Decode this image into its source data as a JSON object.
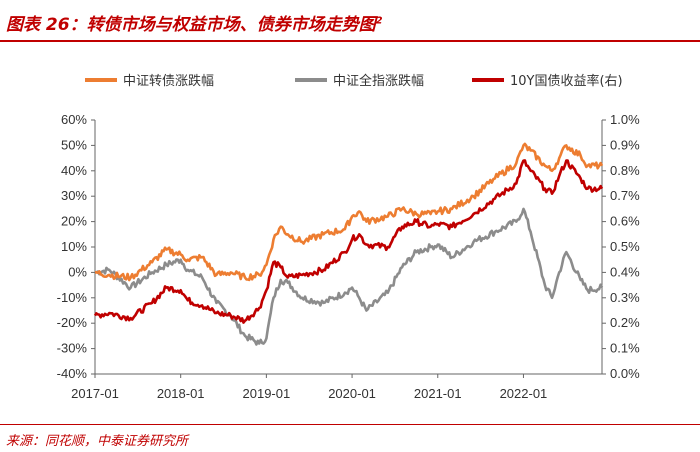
{
  "title": {
    "text": "图表 26：转债市场与权益市场、债券市场走势图",
    "sup": "2"
  },
  "source": "来源：同花顺，中泰证券研究所",
  "chart_data": {
    "type": "line",
    "x_tick_labels": [
      "2017-01",
      "2018-01",
      "2019-01",
      "2020-01",
      "2021-01",
      "2022-01"
    ],
    "x_range": [
      "2017-01",
      "2022-12"
    ],
    "y_left": {
      "ticks": [
        "60%",
        "50%",
        "40%",
        "30%",
        "20%",
        "10%",
        "0%",
        "-10%",
        "-20%",
        "-30%",
        "-40%"
      ],
      "min": -40,
      "max": 60,
      "unit": "%"
    },
    "y_right": {
      "ticks": [
        "1.0%",
        "0.9%",
        "0.8%",
        "0.7%",
        "0.6%",
        "0.5%",
        "0.4%",
        "0.3%",
        "0.2%",
        "0.1%",
        "0.0%"
      ],
      "min": 0.0,
      "max": 1.0,
      "unit": "%"
    },
    "grid": false,
    "legend_position": "top",
    "series": [
      {
        "name": "中证转债涨跌幅",
        "axis": "left",
        "color": "#ed7d31",
        "points": [
          [
            "2017-01",
            0
          ],
          [
            "2017-03",
            -1
          ],
          [
            "2017-06",
            -2
          ],
          [
            "2017-09",
            4
          ],
          [
            "2017-11",
            9
          ],
          [
            "2018-01",
            7
          ],
          [
            "2018-02",
            5
          ],
          [
            "2018-04",
            6
          ],
          [
            "2018-06",
            -1
          ],
          [
            "2018-08",
            0
          ],
          [
            "2018-10",
            -2
          ],
          [
            "2018-12",
            -1
          ],
          [
            "2019-01",
            3
          ],
          [
            "2019-02",
            13
          ],
          [
            "2019-03",
            18
          ],
          [
            "2019-04",
            15
          ],
          [
            "2019-06",
            12
          ],
          [
            "2019-09",
            15
          ],
          [
            "2019-12",
            17
          ],
          [
            "2020-01",
            22
          ],
          [
            "2020-02",
            24
          ],
          [
            "2020-03",
            20
          ],
          [
            "2020-06",
            22
          ],
          [
            "2020-08",
            25
          ],
          [
            "2020-10",
            23
          ],
          [
            "2020-12",
            23
          ],
          [
            "2021-01",
            24
          ],
          [
            "2021-03",
            25
          ],
          [
            "2021-06",
            30
          ],
          [
            "2021-09",
            37
          ],
          [
            "2021-12",
            43
          ],
          [
            "2022-01",
            50
          ],
          [
            "2022-02",
            48
          ],
          [
            "2022-04",
            42
          ],
          [
            "2022-05",
            40
          ],
          [
            "2022-06",
            45
          ],
          [
            "2022-07",
            50
          ],
          [
            "2022-09",
            46
          ],
          [
            "2022-10",
            42
          ],
          [
            "2022-12",
            42
          ]
        ]
      },
      {
        "name": "中证全指涨跌幅",
        "axis": "left",
        "color": "#8c8c8c",
        "points": [
          [
            "2017-01",
            0
          ],
          [
            "2017-03",
            1
          ],
          [
            "2017-06",
            -6
          ],
          [
            "2017-09",
            0
          ],
          [
            "2017-11",
            3
          ],
          [
            "2018-01",
            5
          ],
          [
            "2018-02",
            1
          ],
          [
            "2018-04",
            -2
          ],
          [
            "2018-06",
            -12
          ],
          [
            "2018-08",
            -17
          ],
          [
            "2018-10",
            -25
          ],
          [
            "2018-12",
            -28
          ],
          [
            "2019-01",
            -26
          ],
          [
            "2019-02",
            -10
          ],
          [
            "2019-03",
            -3
          ],
          [
            "2019-04",
            -4
          ],
          [
            "2019-06",
            -10
          ],
          [
            "2019-09",
            -12
          ],
          [
            "2019-12",
            -8
          ],
          [
            "2020-01",
            -6
          ],
          [
            "2020-02",
            -10
          ],
          [
            "2020-03",
            -15
          ],
          [
            "2020-06",
            -8
          ],
          [
            "2020-08",
            2
          ],
          [
            "2020-10",
            8
          ],
          [
            "2020-12",
            10
          ],
          [
            "2021-01",
            11
          ],
          [
            "2021-03",
            6
          ],
          [
            "2021-06",
            12
          ],
          [
            "2021-09",
            16
          ],
          [
            "2021-12",
            20
          ],
          [
            "2022-01",
            25
          ],
          [
            "2022-02",
            16
          ],
          [
            "2022-04",
            -5
          ],
          [
            "2022-05",
            -10
          ],
          [
            "2022-06",
            0
          ],
          [
            "2022-07",
            8
          ],
          [
            "2022-09",
            -3
          ],
          [
            "2022-10",
            -7
          ],
          [
            "2022-12",
            -6
          ]
        ]
      },
      {
        "name": "10Y国债收益率(右)",
        "axis": "right",
        "color": "#c00000",
        "points": [
          [
            "2017-01",
            0.23
          ],
          [
            "2017-03",
            0.24
          ],
          [
            "2017-06",
            0.22
          ],
          [
            "2017-09",
            0.28
          ],
          [
            "2017-11",
            0.34
          ],
          [
            "2018-01",
            0.33
          ],
          [
            "2018-02",
            0.29
          ],
          [
            "2018-04",
            0.27
          ],
          [
            "2018-06",
            0.24
          ],
          [
            "2018-08",
            0.23
          ],
          [
            "2018-10",
            0.21
          ],
          [
            "2018-12",
            0.26
          ],
          [
            "2019-01",
            0.33
          ],
          [
            "2019-02",
            0.44
          ],
          [
            "2019-03",
            0.42
          ],
          [
            "2019-04",
            0.38
          ],
          [
            "2019-06",
            0.39
          ],
          [
            "2019-09",
            0.41
          ],
          [
            "2019-12",
            0.48
          ],
          [
            "2020-01",
            0.53
          ],
          [
            "2020-02",
            0.55
          ],
          [
            "2020-03",
            0.51
          ],
          [
            "2020-06",
            0.5
          ],
          [
            "2020-08",
            0.58
          ],
          [
            "2020-10",
            0.6
          ],
          [
            "2020-12",
            0.58
          ],
          [
            "2021-01",
            0.59
          ],
          [
            "2021-03",
            0.58
          ],
          [
            "2021-06",
            0.63
          ],
          [
            "2021-09",
            0.69
          ],
          [
            "2021-12",
            0.75
          ],
          [
            "2022-01",
            0.84
          ],
          [
            "2022-02",
            0.8
          ],
          [
            "2022-04",
            0.73
          ],
          [
            "2022-05",
            0.71
          ],
          [
            "2022-06",
            0.78
          ],
          [
            "2022-07",
            0.84
          ],
          [
            "2022-09",
            0.77
          ],
          [
            "2022-10",
            0.73
          ],
          [
            "2022-12",
            0.73
          ]
        ]
      }
    ]
  }
}
